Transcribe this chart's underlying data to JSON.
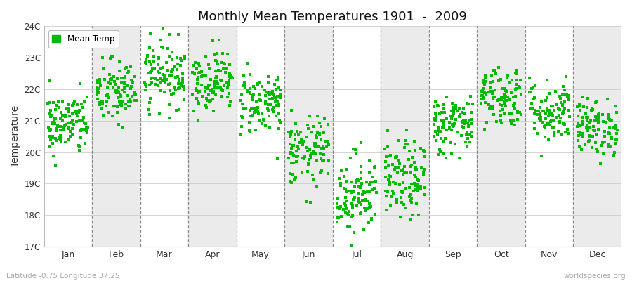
{
  "title": "Monthly Mean Temperatures 1901  -  2009",
  "ylabel": "Temperature",
  "subtitle_left": "Latitude -0.75 Longitude 37.25",
  "subtitle_right": "worldspecies.org",
  "dot_color": "#00BB00",
  "legend_label": "Mean Temp",
  "background_color": "#ffffff",
  "band_color_odd": "#ffffff",
  "band_color_even": "#ebebeb",
  "ylim": [
    17,
    24
  ],
  "ytick_labels": [
    "17C",
    "18C",
    "19C",
    "20C",
    "21C",
    "22C",
    "23C",
    "24C"
  ],
  "ytick_values": [
    17,
    18,
    19,
    20,
    21,
    22,
    23,
    24
  ],
  "months": [
    "Jan",
    "Feb",
    "Mar",
    "Apr",
    "May",
    "Jun",
    "Jul",
    "Aug",
    "Sep",
    "Oct",
    "Nov",
    "Dec"
  ],
  "month_means": [
    20.9,
    21.9,
    22.5,
    22.3,
    21.6,
    20.0,
    18.7,
    19.1,
    20.9,
    21.8,
    21.3,
    20.8
  ],
  "month_stds": [
    0.5,
    0.52,
    0.52,
    0.48,
    0.52,
    0.55,
    0.65,
    0.62,
    0.48,
    0.5,
    0.5,
    0.45
  ],
  "n_years": 109,
  "seed": 42
}
